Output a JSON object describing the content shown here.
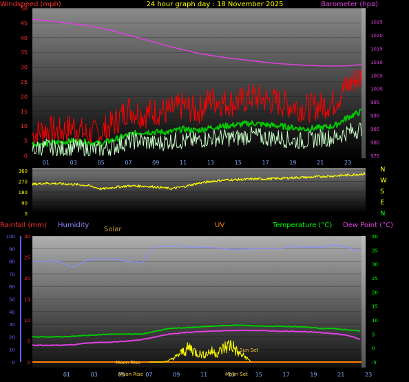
{
  "header": {
    "title": "24 hour graph day : 18 November 2025",
    "left_label": "Windspeed (mph)",
    "right_label": "Barometer (hpa)"
  },
  "direction_labels": [
    "N",
    "W",
    "S",
    "E",
    "N"
  ],
  "lower_labels": {
    "rainfall": "Rainfall (mm)",
    "humidity": "Humidity",
    "solar": "Solar",
    "uv": "UV",
    "temperature": "Temperature (°C)",
    "dewpoint": "Dew Point (°C)"
  },
  "annotations": {
    "moon_rise": "Moon Rise",
    "moon_rise_lower": "Moon Rise",
    "moon_set": "Moon Set",
    "sun_set": "Sun Set"
  },
  "colors": {
    "wind_gust": "#ff0000",
    "wind_avg": "#00c800",
    "wind_speed": "#c8ffc8",
    "barometer": "#e040e0",
    "direction": "#ffff00",
    "humidity": "#8c8cff",
    "temperature": "#00c800",
    "dewpoint": "#e040e0",
    "solar": "#ffff00",
    "rain_axis": "#ff3030",
    "humidity_axis": "#6060ff"
  },
  "chart_data": [
    {
      "type": "line",
      "name": "wind-barometer",
      "x_ticks": [
        "01",
        "03",
        "05",
        "07",
        "09",
        "11",
        "13",
        "15",
        "17",
        "19",
        "21",
        "23"
      ],
      "x_hours": [
        1,
        3,
        5,
        7,
        9,
        11,
        13,
        15,
        17,
        19,
        21,
        23
      ],
      "xlim": [
        0,
        24
      ],
      "ylim_left": [
        0,
        50
      ],
      "yticks_left": [
        0,
        5,
        10,
        15,
        20,
        25,
        30,
        35,
        40,
        45,
        50
      ],
      "ylim_right": [
        975,
        1030
      ],
      "yticks_right": [
        975,
        980,
        985,
        990,
        995,
        1000,
        1005,
        1010,
        1015,
        1020,
        1025
      ],
      "series": [
        {
          "key": "barometer",
          "x": [
            0,
            1,
            2,
            3,
            4,
            5,
            6,
            7,
            8,
            9,
            10,
            11,
            12,
            13,
            14,
            15,
            16,
            17,
            18,
            19,
            20,
            21,
            22,
            23,
            24
          ],
          "values": [
            1026,
            1025.4,
            1024.8,
            1024.2,
            1023.6,
            1022.6,
            1021.4,
            1020,
            1018.6,
            1017.2,
            1015.8,
            1014.5,
            1013.3,
            1012.4,
            1011.6,
            1011,
            1010.4,
            1009.8,
            1009.3,
            1009,
            1008.7,
            1008.5,
            1008.4,
            1008.5,
            1009
          ]
        },
        {
          "key": "wind_gust",
          "x": [
            0,
            1,
            2,
            3,
            4,
            5,
            6,
            7,
            8,
            9,
            10,
            11,
            12,
            13,
            14,
            15,
            16,
            17,
            18,
            19,
            20,
            21,
            22,
            23,
            24
          ],
          "values": [
            7,
            9,
            8,
            10,
            7,
            8,
            11,
            16,
            14,
            15,
            15,
            17,
            15,
            19,
            18,
            18,
            20,
            19,
            18,
            17,
            16,
            17,
            18,
            24,
            27
          ]
        },
        {
          "key": "wind_avg",
          "x": [
            0,
            1,
            2,
            3,
            4,
            5,
            6,
            7,
            8,
            9,
            10,
            11,
            12,
            13,
            14,
            15,
            16,
            17,
            18,
            19,
            20,
            21,
            22,
            23,
            24
          ],
          "values": [
            4,
            4,
            4.5,
            5,
            4.5,
            4,
            5.5,
            7,
            8,
            8,
            8,
            9,
            8.5,
            9.5,
            10,
            10.5,
            11,
            10.5,
            10,
            9.5,
            9,
            9.5,
            10,
            13,
            15
          ]
        },
        {
          "key": "wind_speed",
          "x": [
            0,
            1,
            2,
            3,
            4,
            5,
            6,
            7,
            8,
            9,
            10,
            11,
            12,
            13,
            14,
            15,
            16,
            17,
            18,
            19,
            20,
            21,
            22,
            23,
            24
          ],
          "values": [
            2,
            3,
            2,
            3,
            2,
            2,
            3,
            5,
            5,
            4,
            5,
            5,
            5,
            6,
            6,
            6,
            7,
            6,
            6,
            5,
            5,
            6,
            6,
            8,
            9
          ]
        }
      ]
    },
    {
      "type": "line",
      "name": "wind-direction",
      "xlim": [
        0,
        24
      ],
      "ylim": [
        0,
        360
      ],
      "yticks": [
        0,
        90,
        180,
        270,
        360
      ],
      "series": [
        {
          "key": "direction",
          "x": [
            0,
            1,
            2,
            3,
            4,
            5,
            6,
            7,
            8,
            9,
            10,
            11,
            12,
            13,
            14,
            15,
            16,
            17,
            18,
            19,
            20,
            21,
            22,
            23,
            24
          ],
          "values": [
            245,
            255,
            250,
            245,
            235,
            205,
            222,
            232,
            230,
            222,
            208,
            228,
            255,
            272,
            282,
            285,
            290,
            292,
            296,
            302,
            305,
            312,
            318,
            325,
            335
          ]
        }
      ]
    },
    {
      "type": "line",
      "name": "temperature-humidity",
      "x_ticks": [
        "01",
        "03",
        "05",
        "07",
        "09",
        "11",
        "13",
        "15",
        "17",
        "19",
        "21",
        "23"
      ],
      "x_hours": [
        1,
        3,
        5,
        7,
        9,
        11,
        13,
        15,
        17,
        19,
        21,
        23
      ],
      "xlim": [
        0,
        24
      ],
      "ylim_humidity": [
        0,
        100
      ],
      "yticks_humidity": [
        0,
        10,
        20,
        30,
        40,
        50,
        60,
        70,
        80,
        90,
        100
      ],
      "ylim_rain": [
        0,
        30
      ],
      "yticks_rain": [
        0,
        5,
        10,
        15,
        20,
        25,
        30
      ],
      "ylim_temp": [
        -5,
        40
      ],
      "yticks_temp": [
        -5,
        0,
        5,
        10,
        15,
        20,
        25,
        30,
        35,
        40
      ],
      "series": [
        {
          "key": "humidity",
          "x": [
            0,
            1,
            2,
            3,
            4,
            5,
            6,
            7,
            8,
            9,
            10,
            11,
            12,
            13,
            14,
            15,
            16,
            17,
            18,
            19,
            20,
            21,
            22,
            23,
            24
          ],
          "values": [
            80,
            80,
            80,
            75,
            81,
            82,
            82,
            80,
            79,
            92,
            92,
            92,
            91,
            91,
            90,
            89,
            90,
            90,
            90,
            92,
            91,
            91,
            93,
            91,
            87
          ]
        },
        {
          "key": "temperature",
          "x": [
            0,
            1,
            2,
            3,
            4,
            5,
            6,
            7,
            8,
            9,
            10,
            11,
            12,
            13,
            14,
            15,
            16,
            17,
            18,
            19,
            20,
            21,
            22,
            23,
            24
          ],
          "values": [
            4,
            4,
            4,
            4.2,
            4.5,
            4.8,
            5,
            5,
            5,
            6,
            7,
            7.2,
            7.5,
            7.8,
            8,
            8.2,
            8,
            7.8,
            7.8,
            7.6,
            7.5,
            7,
            7,
            6.5,
            6
          ]
        },
        {
          "key": "dewpoint",
          "x": [
            0,
            1,
            2,
            3,
            4,
            5,
            6,
            7,
            8,
            9,
            10,
            11,
            12,
            13,
            14,
            15,
            16,
            17,
            18,
            19,
            20,
            21,
            22,
            23,
            24
          ],
          "values": [
            1,
            1,
            1,
            1.2,
            1.8,
            2,
            2.2,
            2.5,
            3,
            4,
            5,
            5.5,
            5.8,
            6,
            6.2,
            6.3,
            6.3,
            6.2,
            6,
            6,
            5.8,
            5.5,
            5.2,
            4.5,
            3
          ]
        },
        {
          "key": "solar",
          "x": [
            8.5,
            9,
            9.5,
            10,
            10.5,
            11,
            11.5,
            12,
            12.5,
            13,
            13.5,
            14,
            14.5,
            15,
            15.5,
            16
          ],
          "values": [
            0,
            0,
            0,
            1,
            3,
            6,
            8,
            5,
            4,
            6,
            5,
            8,
            10,
            5,
            3,
            0
          ]
        }
      ]
    }
  ]
}
